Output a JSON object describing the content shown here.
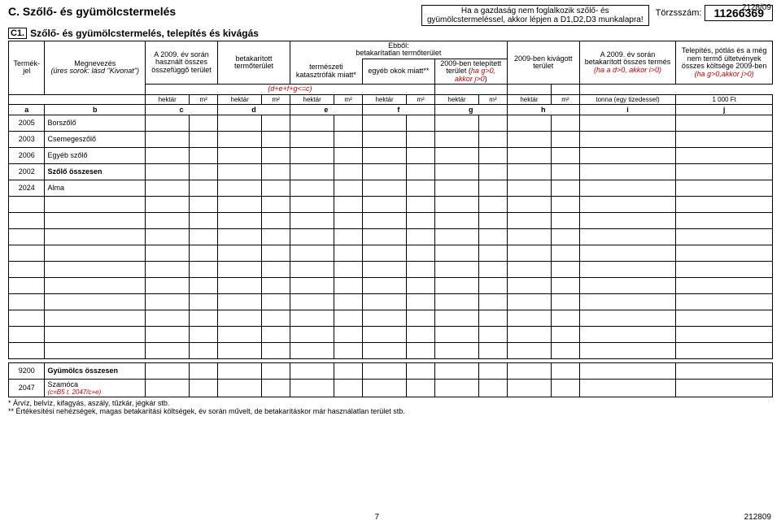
{
  "page": {
    "top_right": "2128/09",
    "bottom_left": "7",
    "bottom_right": "212809"
  },
  "title": "C. Szőlő- és gyümölcstermelés",
  "warning_line1": "Ha a gazdaság nem foglalkozik szőlő- és",
  "warning_line2": "gyümölcstermeléssel, akkor lépjen a D1,D2,D3 munkalapra!",
  "torzs": {
    "label": "Törzsszám:",
    "value": "11266369"
  },
  "c1": {
    "box": "C1.",
    "title": "Szőlő- és gyümölcstermelés, telepítés és kivágás"
  },
  "head": {
    "termekjel": "Termék-\njel",
    "megnevezes": "Megnevezés",
    "megnevezes_sub": "(üres sorok: lásd \"Kivonat\")",
    "col_c": "A 2009. év során használt összes összefüggő terület",
    "col_d": "betakarított termőterület",
    "ebbol": "Ebből:",
    "ebbol_sub": "betakarítatlan termőterület",
    "col_e": "természeti katasztrófák miatt*",
    "col_f": "egyéb okok miatt**",
    "col_g_1": "2009-ben telepített terület (",
    "col_g_red": "ha g>0, akkor j>0",
    "col_g_2": ")",
    "col_h": "2009-ben kivágott terület",
    "col_i_1": "A 2009. év során betakarított összes termés",
    "col_i_red": "(ha a d>0, akkor i>0)",
    "col_j_1": "Telepítés, pótlás és a még nem termő ültetvények összes költsége 2009-ben",
    "col_j_red": "(ha g>0,akkor j>0)",
    "constraint": "(d+e+f+g<=c)"
  },
  "units": {
    "hektar": "hektár",
    "m2": "m²",
    "i": "tonna (egy tizedessel)",
    "j": "1 000 Ft"
  },
  "letters": {
    "a": "a",
    "b": "b",
    "c": "c",
    "d": "d",
    "e": "e",
    "f": "f",
    "g": "g",
    "h": "h",
    "i": "i",
    "j": "j"
  },
  "rows": [
    {
      "code": "2005",
      "name": "Borszőlő"
    },
    {
      "code": "2003",
      "name": "Csemegeszőlő"
    },
    {
      "code": "2006",
      "name": "Egyéb szőlő"
    },
    {
      "code": "2002",
      "name": "Szőlő összesen",
      "bold": true
    },
    {
      "code": "2024",
      "name": "Alma"
    }
  ],
  "bottom_rows": [
    {
      "code": "9200",
      "name": "Gyümölcs összesen",
      "bold": true
    },
    {
      "code": "2047",
      "name": "Szamóca",
      "sub": "(c=B5 t. 2047/c+e)"
    }
  ],
  "footnotes": {
    "f1": "*  Árvíz, belvíz, kifagyás, aszály, tűzkár, jégkár stb.",
    "f2": "** Értékesítési nehézségek, magas betakarítási költségek, év során művelt, de betakarításkor már használatlan terület stb."
  }
}
